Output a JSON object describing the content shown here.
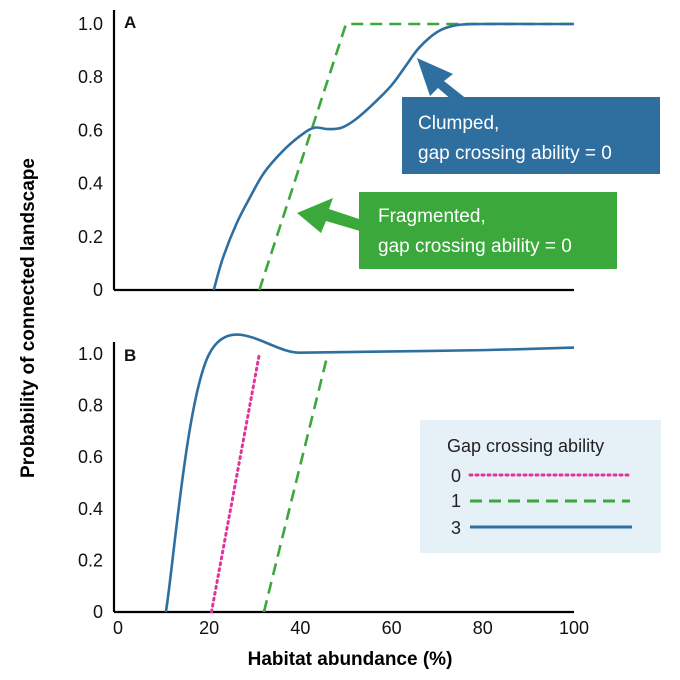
{
  "chart_data": [
    {
      "panel": "A",
      "type": "line",
      "xlim": [
        0,
        100
      ],
      "ylim": [
        0,
        1.0
      ],
      "yticks": [
        "0",
        "0.2",
        "0.4",
        "0.6",
        "0.8",
        "1.0"
      ],
      "series": [
        {
          "name": "Fragmented, gap crossing ability = 0",
          "color": "#3aa83a",
          "style": "dashed",
          "x": [
            31,
            50,
            100
          ],
          "y": [
            0,
            1.0,
            1.0
          ]
        },
        {
          "name": "Clumped, gap crossing ability = 0",
          "color": "#2f6fa0",
          "style": "solid",
          "x": [
            21,
            23,
            26,
            29,
            32,
            36,
            40,
            43,
            46,
            49,
            52,
            56,
            60,
            63,
            66,
            70,
            74,
            80,
            90,
            100
          ],
          "y": [
            0,
            0.12,
            0.25,
            0.35,
            0.44,
            0.52,
            0.58,
            0.61,
            0.605,
            0.61,
            0.64,
            0.7,
            0.77,
            0.84,
            0.91,
            0.97,
            0.995,
            1.0,
            1.0,
            1.0
          ]
        }
      ],
      "annotations": [
        {
          "line1": "Clumped,",
          "line2": "gap crossing ability = 0",
          "color": "#2f6fa0"
        },
        {
          "line1": "Fragmented,",
          "line2": "gap crossing ability = 0",
          "color": "#3aa83a"
        }
      ]
    },
    {
      "panel": "B",
      "type": "line",
      "xlim": [
        0,
        100
      ],
      "ylim": [
        0,
        1.0
      ],
      "xticks": [
        "0",
        "20",
        "40",
        "60",
        "80",
        "100"
      ],
      "yticks": [
        "0",
        "0.2",
        "0.4",
        "0.6",
        "0.8",
        "1.0"
      ],
      "legend": {
        "title": "Gap crossing ability",
        "placement": "center-right"
      },
      "series": [
        {
          "name": "0",
          "color": "#e0359a",
          "style": "dotted",
          "x": [
            20.5,
            31
          ],
          "y": [
            0,
            1.0
          ]
        },
        {
          "name": "1",
          "color": "#3aa83a",
          "style": "dashed",
          "x": [
            32,
            46
          ],
          "y": [
            0,
            1.0
          ]
        },
        {
          "name": "3",
          "color": "#2f6fa0",
          "style": "solid",
          "x": [
            10.5,
            20,
            40,
            60,
            80,
            100
          ],
          "y": [
            0,
            1.0,
            1.005,
            1.01,
            1.015,
            1.025
          ]
        }
      ]
    }
  ],
  "xlabel": "Habitat abundance (%)",
  "ylabel": "Probability of connected landscape"
}
